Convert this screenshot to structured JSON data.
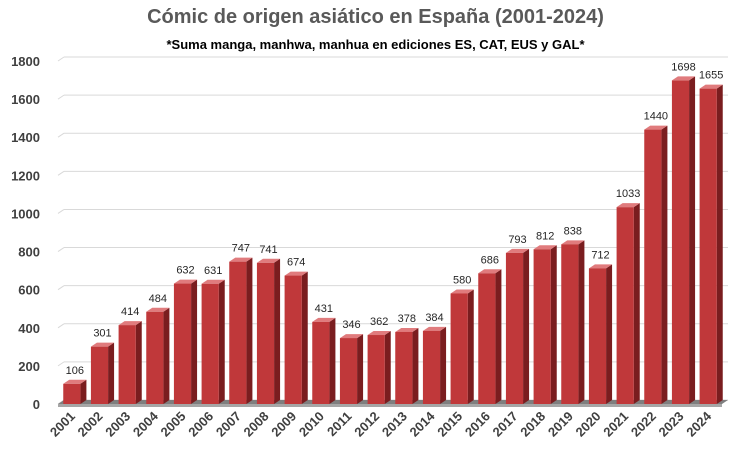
{
  "chart_data": {
    "type": "bar",
    "title": "Cómic de origen asiático en España (2001-2024)",
    "subtitle": "*Suma manga, manhwa, manhua en ediciones ES, CAT, EUS y GAL*",
    "xlabel": "",
    "ylabel": "",
    "categories": [
      "2001",
      "2002",
      "2003",
      "2004",
      "2005",
      "2006",
      "2007",
      "2008",
      "2009",
      "2010",
      "2011",
      "2012",
      "2013",
      "2014",
      "2015",
      "2016",
      "2017",
      "2018",
      "2019",
      "2020",
      "2021",
      "2022",
      "2023",
      "2024"
    ],
    "values": [
      106,
      301,
      414,
      484,
      632,
      631,
      747,
      741,
      674,
      431,
      346,
      362,
      378,
      384,
      580,
      686,
      793,
      812,
      838,
      712,
      1033,
      1440,
      1698,
      1655
    ],
    "ylim": [
      0,
      1800
    ],
    "yticks": [
      0,
      200,
      400,
      600,
      800,
      1000,
      1200,
      1400,
      1600,
      1800
    ],
    "grid": true,
    "legend": "none",
    "bar_color": "#C0383A"
  }
}
